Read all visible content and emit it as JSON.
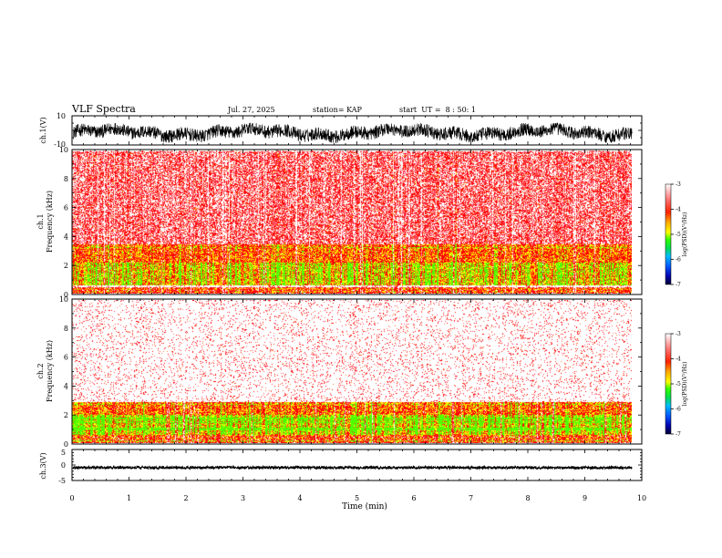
{
  "header": {
    "title": "VLF Spectra",
    "date": "Jul. 27, 2025",
    "station": "station= KAP",
    "start": "start  UT =  8 : 50: 1"
  },
  "chart_data": [
    {
      "type": "line",
      "id": "ch1-waveform",
      "ylabel": "ch.1(V)",
      "ylim": [
        -10,
        10
      ],
      "ytick_labels": [
        "10",
        "-10"
      ],
      "x_range_min": [
        0,
        9.83
      ],
      "signal_range_v": [
        -8.5,
        5
      ],
      "description_level": "dense broadband noise"
    },
    {
      "type": "heatmap",
      "id": "ch1-spectrogram",
      "ylabel": "ch.1\nFrequency (kHz)",
      "ylim": [
        0,
        10
      ],
      "ytick_labels": [
        "0",
        "2",
        "4",
        "6",
        "8",
        "10"
      ],
      "x_range_min": [
        0,
        9.83
      ],
      "bands_khz": [
        {
          "range": [
            0.0,
            0.5
          ],
          "level": "high"
        },
        {
          "range": [
            0.6,
            2.2
          ],
          "level": "highest"
        },
        {
          "range": [
            2.2,
            3.5
          ],
          "level": "high"
        },
        {
          "range": [
            3.5,
            10.0
          ],
          "level": "moderate"
        }
      ],
      "colorbar": {
        "label": "log(PSD)(V²/Hz)",
        "range": [
          -7,
          -3
        ],
        "tick_labels": [
          "-3",
          "-4",
          "-5",
          "-6",
          "-7"
        ]
      }
    },
    {
      "type": "heatmap",
      "id": "ch2-spectrogram",
      "ylabel": "ch.2\nFrequency (kHz)",
      "ylim": [
        0,
        10
      ],
      "ytick_labels": [
        "0",
        "2",
        "4",
        "6",
        "8",
        "10"
      ],
      "x_range_min": [
        0,
        9.83
      ],
      "bands_khz": [
        {
          "range": [
            0.0,
            0.6
          ],
          "level": "high"
        },
        {
          "range": [
            0.6,
            2.0
          ],
          "level": "highest"
        },
        {
          "range": [
            2.0,
            2.9
          ],
          "level": "high"
        },
        {
          "range": [
            2.9,
            10.0
          ],
          "level": "low"
        }
      ],
      "colorbar": {
        "label": "log(PSD)(V²/Hz)",
        "range": [
          -7,
          -3
        ],
        "tick_labels": [
          "-3",
          "-4",
          "-5",
          "-6",
          "-7"
        ]
      }
    },
    {
      "type": "line",
      "id": "ch3-waveform",
      "ylabel": "ch.3(V)",
      "ylim": [
        -5,
        5
      ],
      "ytick_labels": [
        "5",
        "0",
        "-5"
      ],
      "x_range_min": [
        0,
        9.83
      ],
      "signal_range_v": [
        -1.3,
        -0.4
      ]
    }
  ],
  "xaxis": {
    "label": "Time (min)",
    "range": [
      0,
      10
    ],
    "tick_labels": [
      "0",
      "1",
      "2",
      "3",
      "4",
      "5",
      "6",
      "7",
      "8",
      "9",
      "10"
    ]
  },
  "colors": {
    "frame": "#000000",
    "spec_low": "#ffffff",
    "spec_mid": "#ff0000",
    "spec_high": "#ffff00",
    "spec_peak": "#00ff00"
  }
}
